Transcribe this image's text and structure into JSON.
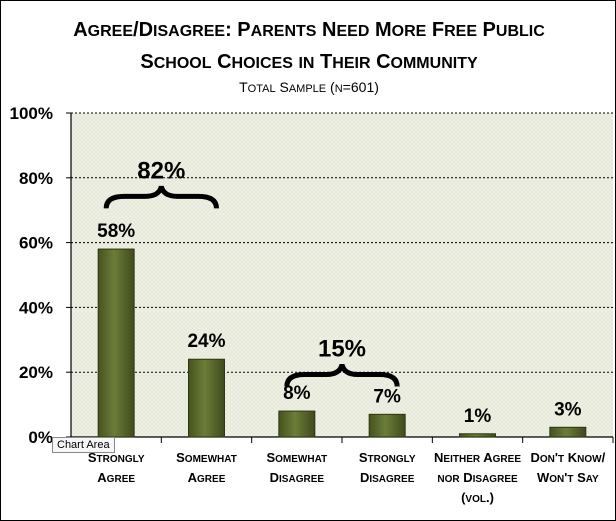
{
  "chart_data": {
    "type": "bar",
    "title_lines": [
      "Agree/Disagree: Parents Need More Free Public",
      "School Choices in Their Community"
    ],
    "subtitle": "Total Sample (n=601)",
    "categories": [
      [
        "Strongly",
        "Agree"
      ],
      [
        "Somewhat",
        "Agree"
      ],
      [
        "Somewhat",
        "Disagree"
      ],
      [
        "Strongly",
        "Disagree"
      ],
      [
        "Neither Agree",
        "nor Disagree",
        "(vol.)"
      ],
      [
        "Don't Know/",
        "Won't Say"
      ]
    ],
    "values": [
      58,
      24,
      8,
      7,
      1,
      3
    ],
    "value_labels": [
      "58%",
      "24%",
      "8%",
      "7%",
      "1%",
      "3%"
    ],
    "yticks": [
      "0%",
      "20%",
      "40%",
      "60%",
      "80%",
      "100%"
    ],
    "ylim": [
      0,
      100
    ],
    "grid": true,
    "bar_color": "#5a6b2e",
    "plot_bg": "#eef0e4",
    "brackets": [
      {
        "label": "82%",
        "from": 0,
        "to": 1,
        "level": 82
      },
      {
        "label": "15%",
        "from": 2,
        "to": 3,
        "level": 27
      }
    ]
  },
  "tooltip": "Chart Area"
}
